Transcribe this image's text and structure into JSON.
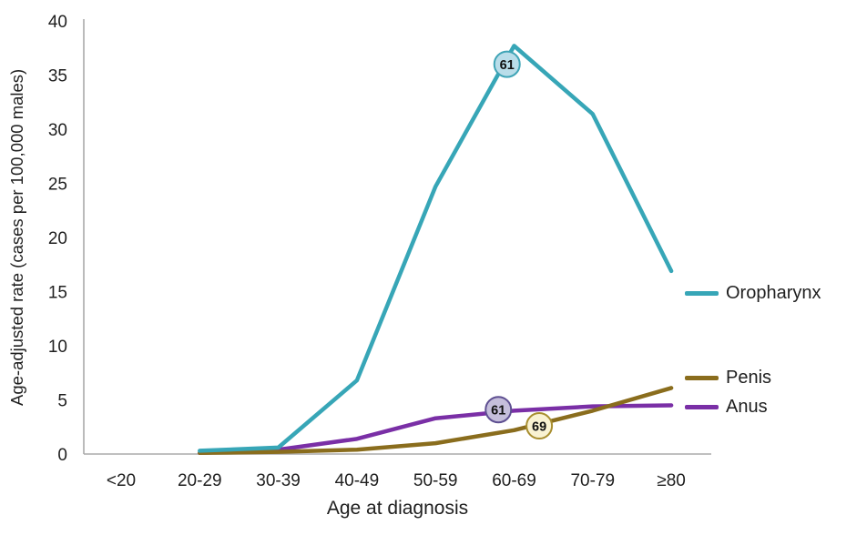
{
  "chart_data": {
    "type": "line",
    "title": "",
    "xlabel": "Age at diagnosis",
    "ylabel": "Age-adjusted rate (cases per 100,000 males)",
    "categories": [
      "<20",
      "20-29",
      "30-39",
      "40-49",
      "50-59",
      "60-69",
      "70-79",
      "≥80"
    ],
    "ylim": [
      0,
      40
    ],
    "yticks": [
      0,
      5,
      10,
      15,
      20,
      25,
      30,
      35,
      40
    ],
    "grid": false,
    "legend_position": "right",
    "axis_color": "#aaaaaa",
    "text_color": "#1f1f1f",
    "series": [
      {
        "name": "Oropharynx",
        "color": "#37a6b7",
        "values": [
          null,
          0.3,
          0.6,
          6.8,
          24.7,
          37.7,
          31.4,
          16.9
        ]
      },
      {
        "name": "Penis",
        "color": "#8a6d1d",
        "values": [
          null,
          0.1,
          0.2,
          0.4,
          1.0,
          2.2,
          4.0,
          6.1
        ]
      },
      {
        "name": "Anus",
        "color": "#7a2fa6",
        "values": [
          null,
          0.1,
          0.4,
          1.4,
          3.3,
          4.0,
          4.4,
          4.5
        ]
      }
    ],
    "annotations": [
      {
        "label": "61",
        "series": "Oropharynx",
        "x_index": 4.91,
        "y_value": 36.0,
        "fill": "#b9dde9",
        "border": "#3fa4b6"
      },
      {
        "label": "61",
        "series": "Anus",
        "x_index": 4.8,
        "y_value": 4.1,
        "fill": "#c5bedb",
        "border": "#5e4f91"
      },
      {
        "label": "69",
        "series": "Penis",
        "x_index": 5.32,
        "y_value": 2.6,
        "fill": "#f9f2d2",
        "border": "#a88e2f"
      }
    ]
  }
}
